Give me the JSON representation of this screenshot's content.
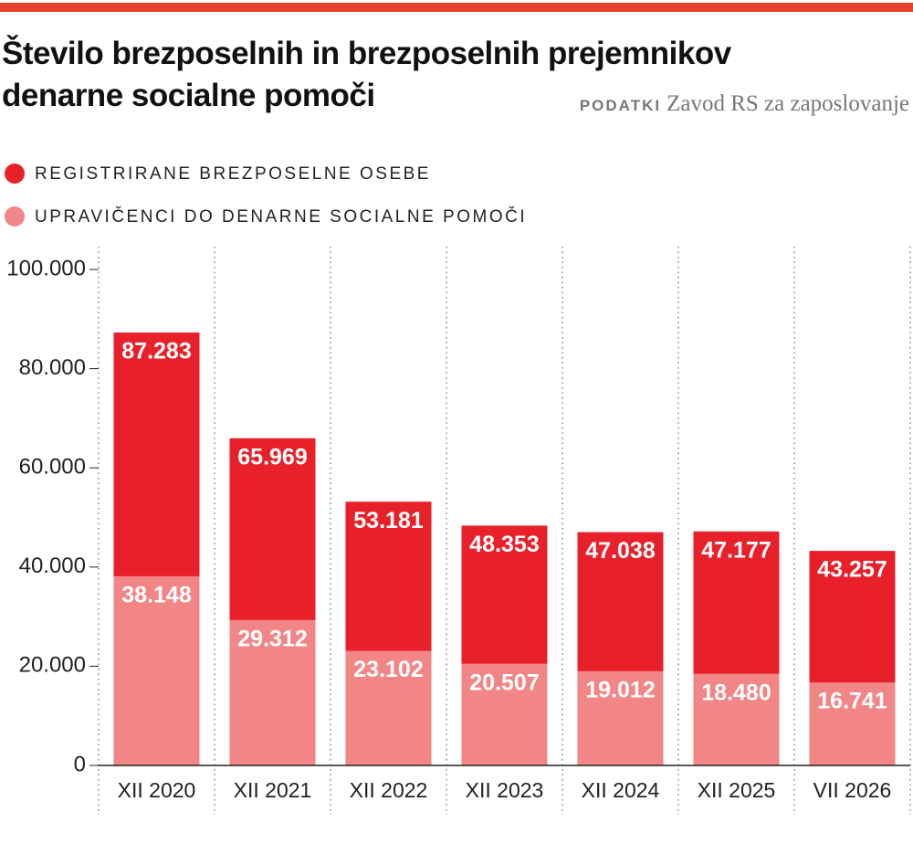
{
  "chart_data": {
    "type": "bar",
    "barmode": "overlay",
    "title": "Število brezposelnih in brezposelnih prejemnikov denarne socialne pomoči",
    "source_label": "PODATKI",
    "source": "Zavod RS za zaposlovanje",
    "categories": [
      "XII 2020",
      "XII 2021",
      "XII 2022",
      "XII 2023",
      "XII 2024",
      "XII 2025",
      "VII 2026"
    ],
    "series": [
      {
        "name": "REGISTRIRANE BREZPOSELNE OSEBE",
        "color": "#e8202a",
        "values": [
          87283,
          65969,
          53181,
          48353,
          47038,
          47177,
          43257
        ],
        "value_labels": [
          "87.283",
          "65.969",
          "53.181",
          "48.353",
          "47.038",
          "47.177",
          "43.257"
        ]
      },
      {
        "name": "UPRAVIČENCI DO DENARNE SOCIALNE POMOČI",
        "color": "#f28585",
        "values": [
          38148,
          29312,
          23102,
          20507,
          19012,
          18480,
          16741
        ],
        "value_labels": [
          "38.148",
          "29.312",
          "23.102",
          "20.507",
          "19.012",
          "18.480",
          "16.741"
        ]
      }
    ],
    "ylim": [
      0,
      100000
    ],
    "yticks": [
      0,
      {
        "value": 20000,
        "label": "20.000"
      },
      {
        "value": 40000,
        "label": "40.000"
      },
      {
        "value": 60000,
        "label": "60.000"
      },
      {
        "value": 80000,
        "label": "80.000"
      },
      {
        "value": 100000,
        "label": "100.000"
      }
    ],
    "grid": "vertical-dotted"
  }
}
